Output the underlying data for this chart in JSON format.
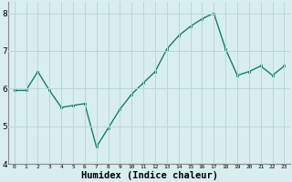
{
  "x": [
    0,
    1,
    2,
    3,
    4,
    5,
    6,
    7,
    8,
    9,
    10,
    11,
    12,
    13,
    14,
    15,
    16,
    17,
    18,
    19,
    20,
    21,
    22,
    23
  ],
  "y": [
    5.95,
    5.95,
    6.45,
    5.95,
    5.5,
    5.55,
    5.6,
    4.45,
    4.95,
    5.45,
    5.85,
    6.15,
    6.45,
    7.05,
    7.4,
    7.65,
    7.85,
    8.0,
    7.05,
    6.35,
    6.45,
    6.6,
    6.35,
    6.6
  ],
  "xlabel": "Humidex (Indice chaleur)",
  "ylim": [
    4.0,
    8.3
  ],
  "xlim": [
    -0.5,
    23.5
  ],
  "bg_color": "#d8eeee",
  "grid_color": "#b8d8d8",
  "line_color": "#1a7a6e",
  "marker_color": "#1a7a6e",
  "xlabel_fontsize": 7.5,
  "yticks": [
    4,
    5,
    6,
    7,
    8
  ],
  "xticks": [
    0,
    1,
    2,
    3,
    4,
    5,
    6,
    7,
    8,
    9,
    10,
    11,
    12,
    13,
    14,
    15,
    16,
    17,
    18,
    19,
    20,
    21,
    22,
    23
  ]
}
